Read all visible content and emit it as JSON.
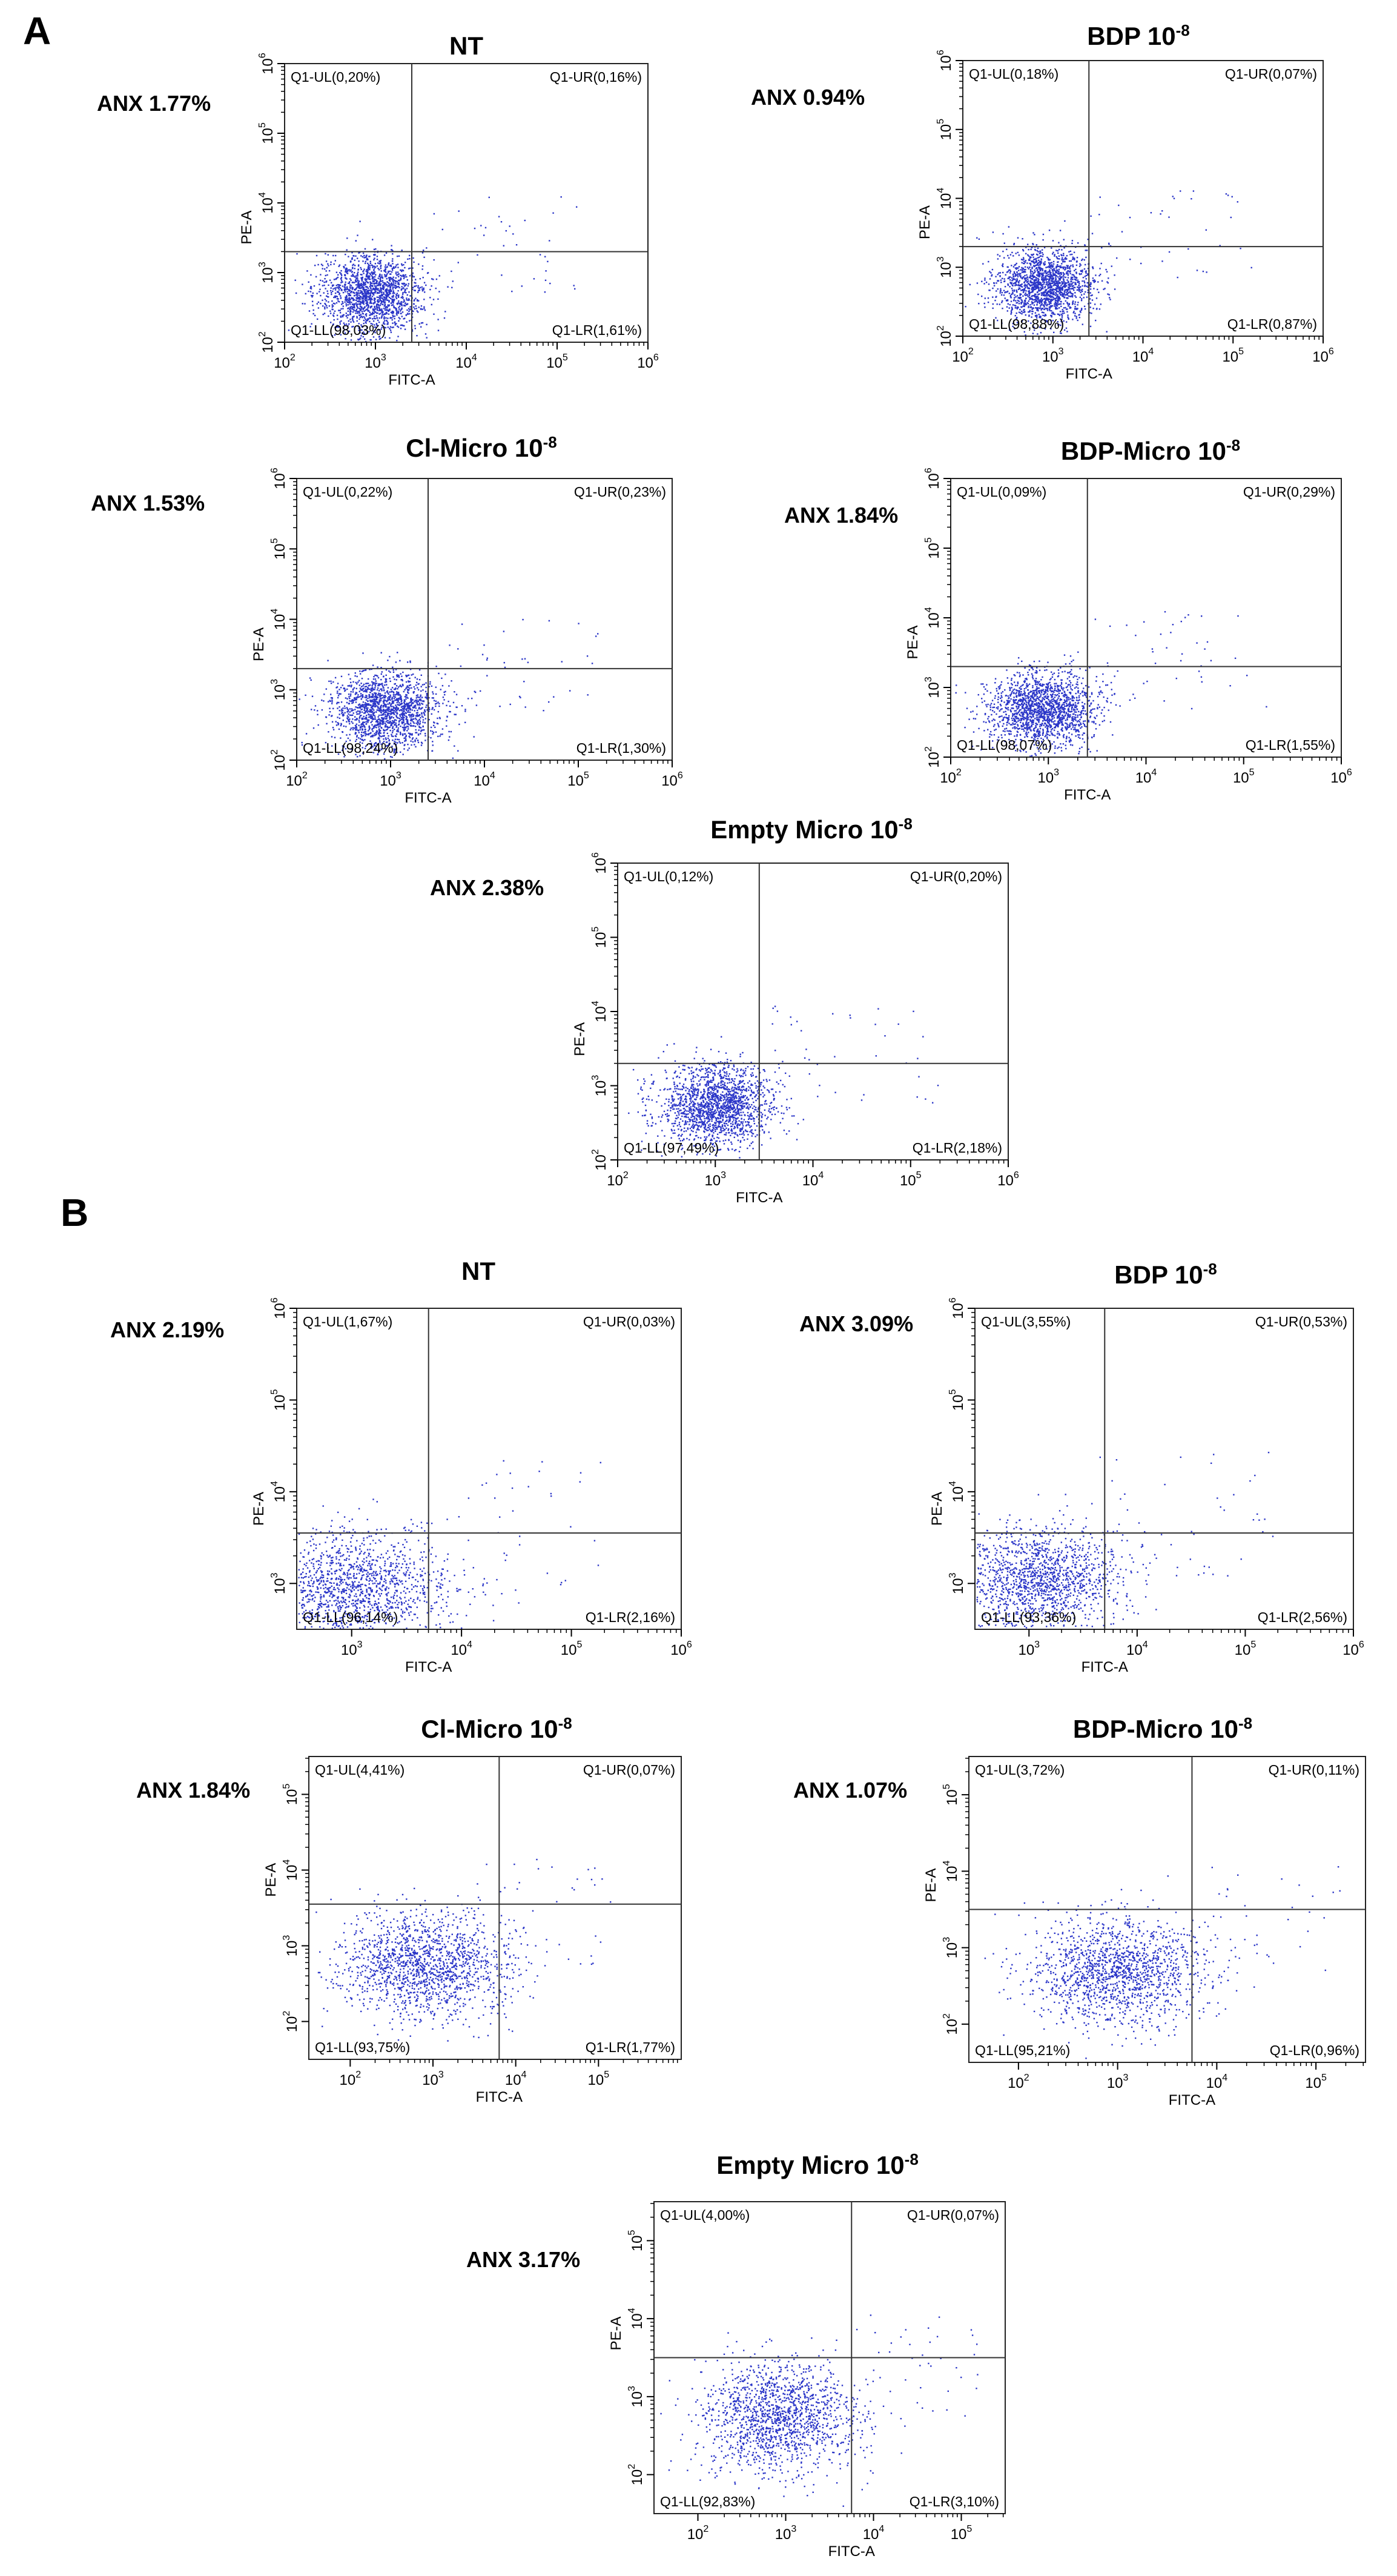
{
  "panels": [
    {
      "letter": "A"
    },
    {
      "letter": "B"
    }
  ],
  "colors": {
    "dots": "#2b36c8",
    "axis": "#000000",
    "quadrant": "#333333"
  },
  "axis_labels": {
    "x": "FITC-A",
    "y": "PE-A"
  },
  "chart_data": [
    {
      "type": "scatter",
      "panel": "A",
      "title": "NT",
      "superscript": "",
      "anx": "ANX 1.77%",
      "xlim": [
        2,
        6
      ],
      "ylim": [
        2,
        6
      ],
      "xticks": [
        2,
        3,
        4,
        5,
        6
      ],
      "yticks": [
        2,
        3,
        4,
        5,
        6
      ],
      "gate": [
        3.4,
        3.3
      ],
      "quadrants": {
        "UL": "Q1-UL(0,20%)",
        "UR": "Q1-UR(0,16%)",
        "LL": "Q1-LL(98,03%)",
        "LR": "Q1-LR(1,61%)"
      },
      "cloud": {
        "cx": 2.95,
        "cy": 2.7,
        "sx": 0.28,
        "sy": 0.28,
        "n": 1700
      }
    },
    {
      "type": "scatter",
      "panel": "A",
      "title": "BDP 10",
      "superscript": "-8",
      "anx": "ANX 0.94%",
      "xlim": [
        2,
        6
      ],
      "ylim": [
        2,
        6
      ],
      "xticks": [
        2,
        3,
        4,
        5,
        6
      ],
      "yticks": [
        2,
        3,
        4,
        5,
        6
      ],
      "gate": [
        3.4,
        3.3
      ],
      "quadrants": {
        "UL": "Q1-UL(0,18%)",
        "UR": "Q1-UR(0,07%)",
        "LL": "Q1-LL(98,88%)",
        "LR": "Q1-LR(0,87%)"
      },
      "cloud": {
        "cx": 2.9,
        "cy": 2.75,
        "sx": 0.27,
        "sy": 0.26,
        "n": 1700
      }
    },
    {
      "type": "scatter",
      "panel": "A",
      "title": "Cl-Micro 10",
      "superscript": "-8",
      "anx": "ANX 1.53%",
      "xlim": [
        2,
        6
      ],
      "ylim": [
        2,
        6
      ],
      "xticks": [
        2,
        3,
        4,
        5,
        6
      ],
      "yticks": [
        2,
        3,
        4,
        5,
        6
      ],
      "gate": [
        3.4,
        3.3
      ],
      "quadrants": {
        "UL": "Q1-UL(0,22%)",
        "UR": "Q1-UR(0,23%)",
        "LL": "Q1-LL(98,24%)",
        "LR": "Q1-LR(1,30%)"
      },
      "cloud": {
        "cx": 2.95,
        "cy": 2.7,
        "sx": 0.3,
        "sy": 0.28,
        "n": 1700
      }
    },
    {
      "type": "scatter",
      "panel": "A",
      "title": "BDP-Micro 10",
      "superscript": "-8",
      "anx": "ANX 1.84%",
      "xlim": [
        2,
        6
      ],
      "ylim": [
        2,
        6
      ],
      "xticks": [
        2,
        3,
        4,
        5,
        6
      ],
      "yticks": [
        2,
        3,
        4,
        5,
        6
      ],
      "gate": [
        3.4,
        3.3
      ],
      "quadrants": {
        "UL": "Q1-UL(0,09%)",
        "UR": "Q1-UR(0,29%)",
        "LL": "Q1-LL(98,07%)",
        "LR": "Q1-LR(1,55%)"
      },
      "cloud": {
        "cx": 2.95,
        "cy": 2.7,
        "sx": 0.28,
        "sy": 0.27,
        "n": 1700
      }
    },
    {
      "type": "scatter",
      "panel": "A",
      "title": "Empty Micro 10",
      "superscript": "-8",
      "anx": "ANX 2.38%",
      "xlim": [
        2,
        6
      ],
      "ylim": [
        2,
        6
      ],
      "xticks": [
        2,
        3,
        4,
        5,
        6
      ],
      "yticks": [
        2,
        3,
        4,
        5,
        6
      ],
      "gate": [
        3.45,
        3.3
      ],
      "quadrants": {
        "UL": "Q1-UL(0,12%)",
        "UR": "Q1-UR(0,20%)",
        "LL": "Q1-LL(97,49%)",
        "LR": "Q1-LR(2,18%)"
      },
      "cloud": {
        "cx": 3.0,
        "cy": 2.75,
        "sx": 0.3,
        "sy": 0.27,
        "n": 1700
      }
    },
    {
      "type": "scatter",
      "panel": "B",
      "title": "NT",
      "superscript": "",
      "anx": "ANX 2.19%",
      "xlim": [
        2.5,
        6
      ],
      "ylim": [
        2.5,
        6
      ],
      "xticks": [
        3,
        4,
        5,
        6
      ],
      "yticks": [
        3,
        4,
        5,
        6
      ],
      "gate": [
        3.7,
        3.55
      ],
      "quadrants": {
        "UL": "Q1-UL(1,67%)",
        "UR": "Q1-UR(0,03%)",
        "LL": "Q1-LL(96,14%)",
        "LR": "Q1-LR(2,16%)"
      },
      "cloud": {
        "cx": 3.0,
        "cy": 2.95,
        "sx": 0.45,
        "sy": 0.3,
        "n": 1500
      }
    },
    {
      "type": "scatter",
      "panel": "B",
      "title": "BDP 10",
      "superscript": "-8",
      "anx": "ANX 3.09%",
      "xlim": [
        2.5,
        6
      ],
      "ylim": [
        2.5,
        6
      ],
      "xticks": [
        3,
        4,
        5,
        6
      ],
      "yticks": [
        3,
        4,
        5,
        6
      ],
      "gate": [
        3.7,
        3.55
      ],
      "quadrants": {
        "UL": "Q1-UL(3,55%)",
        "UR": "Q1-UR(0,53%)",
        "LL": "Q1-LL(93,36%)",
        "LR": "Q1-LR(2,56%)"
      },
      "cloud": {
        "cx": 3.05,
        "cy": 3.05,
        "sx": 0.4,
        "sy": 0.3,
        "n": 1500
      }
    },
    {
      "type": "scatter",
      "panel": "B",
      "title": "Cl-Micro 10",
      "superscript": "-8",
      "anx": "ANX 1.84%",
      "xlim": [
        1.5,
        6
      ],
      "ylim": [
        1.5,
        5.5
      ],
      "xticks": [
        2,
        3,
        4,
        5
      ],
      "yticks": [
        2,
        3,
        4,
        5
      ],
      "gate": [
        3.8,
        3.55
      ],
      "quadrants": {
        "UL": "Q1-UL(4,41%)",
        "UR": "Q1-UR(0,07%)",
        "LL": "Q1-LL(93,75%)",
        "LR": "Q1-LR(1,77%)"
      },
      "cloud": {
        "cx": 2.9,
        "cy": 2.75,
        "sx": 0.5,
        "sy": 0.35,
        "n": 1500
      }
    },
    {
      "type": "scatter",
      "panel": "B",
      "title": "BDP-Micro 10",
      "superscript": "-8",
      "anx": "ANX 1.07%",
      "xlim": [
        1.5,
        5.5
      ],
      "ylim": [
        1.5,
        5.5
      ],
      "xticks": [
        2,
        3,
        4,
        5
      ],
      "yticks": [
        2,
        3,
        4,
        5
      ],
      "gate": [
        3.75,
        3.5
      ],
      "quadrants": {
        "UL": "Q1-UL(3,72%)",
        "UR": "Q1-UR(0,11%)",
        "LL": "Q1-LL(95,21%)",
        "LR": "Q1-LR(0,96%)"
      },
      "cloud": {
        "cx": 3.0,
        "cy": 2.7,
        "sx": 0.45,
        "sy": 0.35,
        "n": 1500
      }
    },
    {
      "type": "scatter",
      "panel": "B",
      "title": "Empty Micro 10",
      "superscript": "-8",
      "anx": "ANX 3.17%",
      "xlim": [
        1.5,
        5.5
      ],
      "ylim": [
        1.5,
        5.5
      ],
      "xticks": [
        2,
        3,
        4,
        5
      ],
      "yticks": [
        2,
        3,
        4,
        5
      ],
      "gate": [
        3.75,
        3.5
      ],
      "quadrants": {
        "UL": "Q1-UL(4,00%)",
        "UR": "Q1-UR(0,07%)",
        "LL": "Q1-LL(92,83%)",
        "LR": "Q1-LR(3,10%)"
      },
      "cloud": {
        "cx": 2.95,
        "cy": 2.75,
        "sx": 0.45,
        "sy": 0.35,
        "n": 1500
      }
    }
  ]
}
